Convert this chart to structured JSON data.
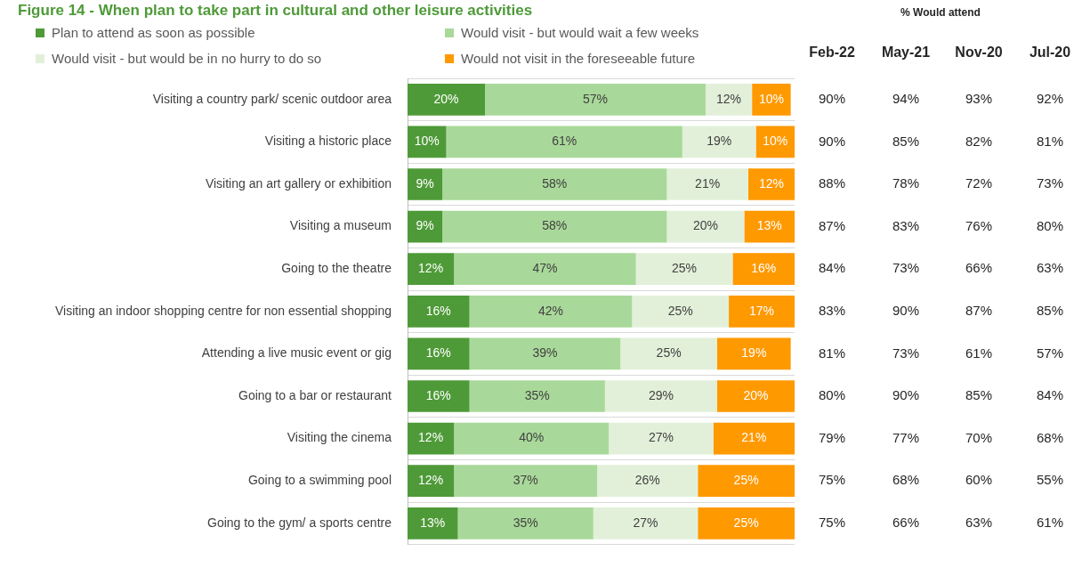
{
  "chart_data": {
    "type": "bar",
    "orientation": "horizontal",
    "stacked": true,
    "title": "Figure 14 - When plan to take part in cultural and other leisure activities",
    "categories": [
      "Visiting a country park/ scenic outdoor area",
      "Visiting a historic place",
      "Visiting an art gallery or exhibition",
      "Visiting a museum",
      "Going to the theatre",
      "Visiting an indoor shopping centre for non essential shopping",
      "Attending a live music event or gig",
      "Going to a bar or restaurant",
      "Visiting the cinema",
      "Going to a swimming pool",
      "Going to the gym/ a sports centre"
    ],
    "series": [
      {
        "name": "Plan to attend as soon as possible",
        "color": "#4e9a38",
        "values": [
          20,
          10,
          9,
          9,
          12,
          16,
          16,
          16,
          12,
          12,
          13
        ],
        "value_labels": [
          "20%",
          "10%",
          "9%",
          "9%",
          "12%",
          "16%",
          "16%",
          "16%",
          "12%",
          "12%",
          "13%"
        ]
      },
      {
        "name": "Would visit - but would wait a few weeks",
        "color": "#a9d99a",
        "values": [
          57,
          61,
          58,
          58,
          47,
          42,
          39,
          35,
          40,
          37,
          35
        ],
        "value_labels": [
          "57%",
          "61%",
          "58%",
          "58%",
          "47%",
          "42%",
          "39%",
          "35%",
          "40%",
          "37%",
          "35%"
        ]
      },
      {
        "name": "Would visit - but would be in no hurry to do so",
        "color": "#e2f0d9",
        "values": [
          12,
          19,
          21,
          20,
          25,
          25,
          25,
          29,
          27,
          26,
          27
        ],
        "value_labels": [
          "12%",
          "19%",
          "21%",
          "20%",
          "25%",
          "25%",
          "25%",
          "29%",
          "27%",
          "26%",
          "27%"
        ]
      },
      {
        "name": "Would not visit in the foreseeable future",
        "color": "#ff9900",
        "values": [
          10,
          10,
          12,
          13,
          16,
          17,
          19,
          20,
          21,
          25,
          25
        ],
        "value_labels": [
          "10%",
          "10%",
          "12%",
          "13%",
          "16%",
          "17%",
          "19%",
          "20%",
          "21%",
          "25%",
          "25%"
        ]
      }
    ],
    "xlim": [
      0,
      100
    ],
    "tick_labels": "y",
    "grid": "y",
    "legend": "top",
    "annotations": [
      "% Would attend",
      "Feb-22",
      "May-21",
      "Nov-20",
      "Jul-20",
      "90%",
      "94%",
      "93%",
      "92%",
      "90%",
      "85%",
      "82%",
      "81%",
      "88%",
      "78%",
      "72%",
      "73%",
      "87%",
      "83%",
      "76%",
      "80%",
      "84%",
      "73%",
      "66%",
      "63%",
      "83%",
      "90%",
      "87%",
      "85%",
      "81%",
      "73%",
      "61%",
      "57%",
      "80%",
      "90%",
      "85%",
      "84%",
      "79%",
      "77%",
      "70%",
      "68%",
      "75%",
      "68%",
      "60%",
      "55%",
      "75%",
      "66%",
      "63%",
      "61%"
    ]
  }
}
